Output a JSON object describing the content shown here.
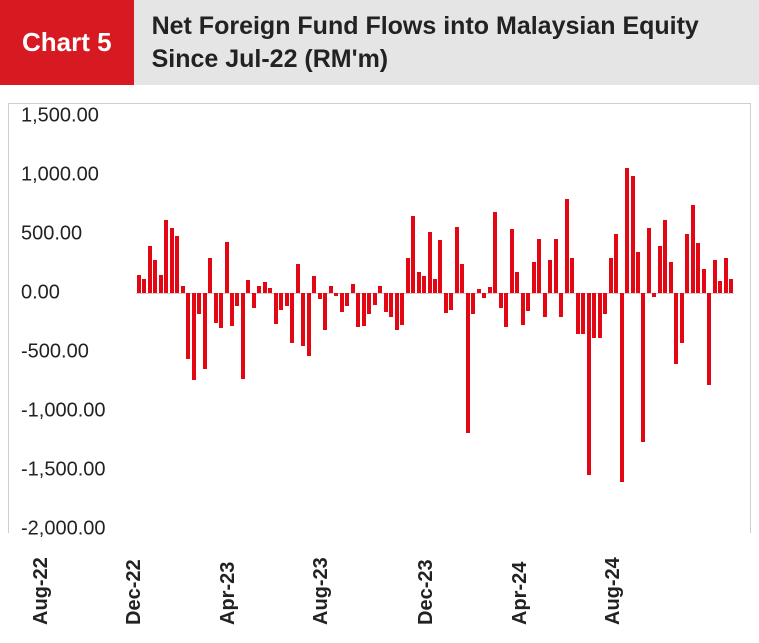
{
  "header": {
    "badge": "Chart 5",
    "title": "Net Foreign Fund Flows into Malaysian Equity Since Jul-22 (RM'm)"
  },
  "chart": {
    "type": "bar",
    "bar_color": "#e30613",
    "badge_bg": "#d71921",
    "title_bg": "#e5e5e5",
    "border_color": "#cfcfcf",
    "ylim": [
      -2000,
      1500
    ],
    "ytick_step": 500,
    "yticks": [
      {
        "v": 1500,
        "label": "1,500.00"
      },
      {
        "v": 1000,
        "label": "1,000.00"
      },
      {
        "v": 500,
        "label": "500.00"
      },
      {
        "v": 0,
        "label": "0.00"
      },
      {
        "v": -500,
        "label": "-500.00"
      },
      {
        "v": -1000,
        "label": "-1,000.00"
      },
      {
        "v": -1500,
        "label": "-1,500.00"
      },
      {
        "v": -2000,
        "label": "-2,000.00"
      }
    ],
    "xticks": [
      {
        "index": 2,
        "label": "Aug-22"
      },
      {
        "index": 19,
        "label": "Dec-22"
      },
      {
        "index": 36,
        "label": "Apr-23"
      },
      {
        "index": 53,
        "label": "Aug-23"
      },
      {
        "index": 72,
        "label": "Dec-23"
      },
      {
        "index": 89,
        "label": "Apr-24"
      },
      {
        "index": 106,
        "label": "Aug-24"
      }
    ],
    "values": [
      150,
      120,
      400,
      280,
      150,
      620,
      550,
      480,
      60,
      -560,
      -740,
      -180,
      -640,
      300,
      -250,
      -300,
      430,
      -280,
      -110,
      -730,
      110,
      -130,
      60,
      90,
      45,
      -260,
      -140,
      -110,
      -420,
      250,
      -450,
      -530,
      140,
      -50,
      -310,
      60,
      -25,
      -160,
      -110,
      80,
      -290,
      -280,
      -180,
      -100,
      60,
      -160,
      -200,
      -310,
      -270,
      300,
      650,
      180,
      140,
      520,
      120,
      450,
      -170,
      -140,
      560,
      250,
      -1190,
      -180,
      30,
      -40,
      50,
      690,
      -130,
      -290,
      540,
      180,
      -270,
      -150,
      260,
      460,
      -200,
      280,
      460,
      -200,
      800,
      300,
      -350,
      -350,
      -1540,
      -380,
      -380,
      -180,
      300,
      500,
      -1600,
      1060,
      990,
      350,
      -1260,
      550,
      -30,
      400,
      620,
      260,
      -600,
      -420,
      500,
      750,
      420,
      200,
      -780,
      280,
      100,
      300,
      120
    ]
  }
}
